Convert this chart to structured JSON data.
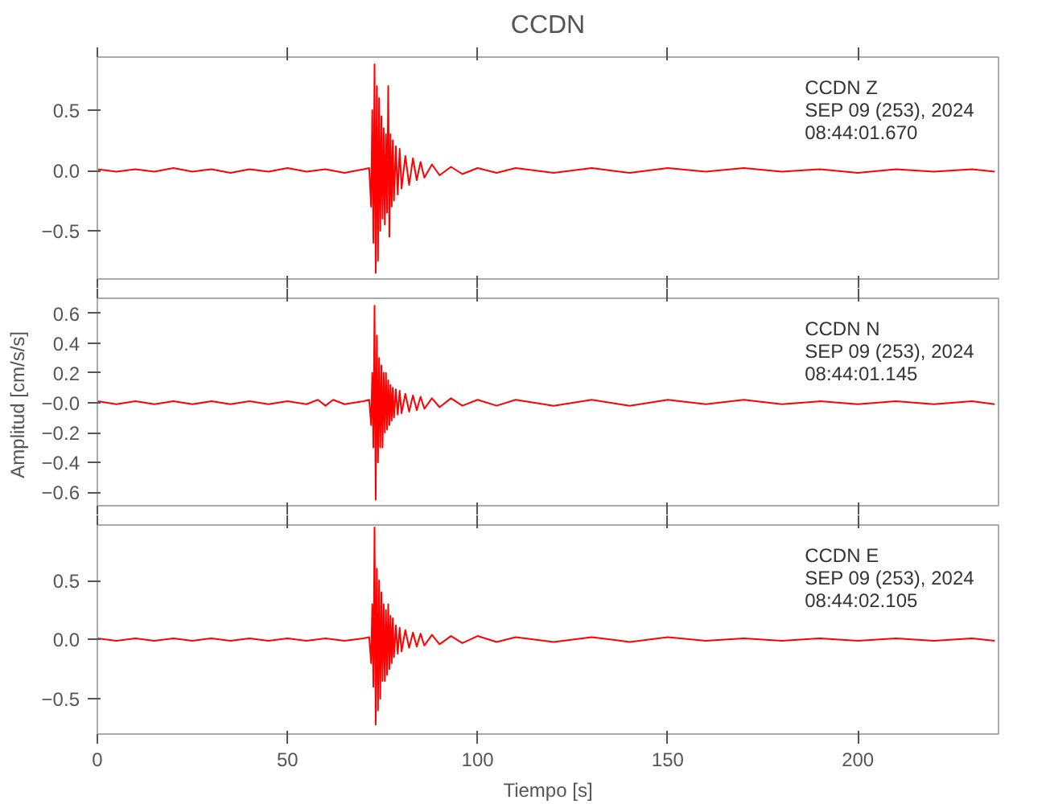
{
  "chart_data": [
    {
      "type": "line",
      "title": "CCDN",
      "annotations": [
        "CCDN   Z",
        "SEP 09 (253), 2024",
        "08:44:01.670"
      ],
      "x": [
        0,
        5,
        10,
        15,
        20,
        25,
        30,
        35,
        40,
        45,
        50,
        55,
        60,
        65,
        70,
        71.5,
        72,
        72.3,
        72.6,
        72.9,
        73.2,
        73.5,
        73.8,
        74.1,
        74.4,
        74.7,
        75,
        75.3,
        75.6,
        75.9,
        76.2,
        76.5,
        76.8,
        77.1,
        77.4,
        77.7,
        78,
        78.5,
        79,
        79.5,
        80,
        81,
        82,
        83,
        84,
        85,
        86,
        88,
        90,
        93,
        96,
        100,
        105,
        110,
        120,
        130,
        140,
        150,
        160,
        170,
        180,
        190,
        200,
        210,
        220,
        230,
        236
      ],
      "series": [
        {
          "color": "#ff0000",
          "values": [
            0.01,
            -0.01,
            0.01,
            -0.01,
            0.02,
            -0.01,
            0.01,
            -0.02,
            0.01,
            -0.01,
            0.02,
            -0.01,
            0.01,
            -0.02,
            0.01,
            0.02,
            -0.3,
            0.5,
            -0.6,
            0.88,
            -0.85,
            0.7,
            -0.75,
            0.6,
            -0.5,
            0.45,
            -0.4,
            0.35,
            -0.45,
            0.3,
            -0.35,
            0.7,
            -0.55,
            0.3,
            -0.3,
            0.25,
            -0.25,
            0.2,
            -0.2,
            0.18,
            -0.15,
            0.12,
            -0.12,
            0.1,
            -0.08,
            0.07,
            -0.06,
            0.05,
            -0.04,
            0.03,
            -0.03,
            0.02,
            -0.02,
            0.02,
            -0.02,
            0.02,
            -0.02,
            0.02,
            -0.01,
            0.02,
            -0.01,
            0.01,
            -0.02,
            0.01,
            -0.01,
            0.01,
            -0.01
          ]
        }
      ],
      "xlim": [
        0,
        237
      ],
      "ylim": [
        -0.9,
        0.94
      ],
      "xticks": [
        0,
        50,
        100,
        150,
        200
      ],
      "yticks": [
        {
          "value": -0.5,
          "label": "−0.5"
        },
        {
          "value": 0,
          "label": "0.0"
        },
        {
          "value": 0.5,
          "label": "0.5"
        }
      ],
      "tick_labels": "y",
      "grid": false
    },
    {
      "type": "line",
      "ylabel": "Amplitud  [cm/s/s]",
      "annotations": [
        "CCDN   N",
        "SEP 09 (253), 2024",
        "08:44:01.145"
      ],
      "x": [
        0,
        5,
        10,
        15,
        20,
        25,
        30,
        35,
        40,
        45,
        50,
        55,
        58,
        60,
        62,
        65,
        70,
        71.5,
        72,
        72.3,
        72.6,
        72.9,
        73.2,
        73.5,
        73.8,
        74.1,
        74.4,
        74.7,
        75,
        75.3,
        75.6,
        75.9,
        76.2,
        76.5,
        76.8,
        77.1,
        77.4,
        77.7,
        78,
        78.5,
        79,
        79.5,
        80,
        81,
        82,
        83,
        84,
        85,
        86,
        88,
        90,
        93,
        96,
        100,
        105,
        110,
        120,
        130,
        140,
        150,
        160,
        170,
        180,
        190,
        200,
        210,
        220,
        230,
        236
      ],
      "series": [
        {
          "color": "#ff0000",
          "values": [
            0.01,
            -0.01,
            0.01,
            -0.01,
            0.01,
            -0.01,
            0.01,
            -0.01,
            0.01,
            -0.01,
            0.01,
            -0.01,
            0.02,
            -0.02,
            0.02,
            -0.01,
            0.01,
            0.02,
            -0.15,
            0.2,
            -0.3,
            0.65,
            -0.65,
            0.45,
            -0.4,
            0.3,
            -0.3,
            0.25,
            -0.3,
            0.2,
            -0.2,
            0.2,
            -0.18,
            0.15,
            -0.15,
            0.12,
            -0.12,
            0.1,
            -0.1,
            0.09,
            -0.08,
            0.08,
            -0.07,
            0.06,
            -0.06,
            0.05,
            -0.05,
            0.04,
            -0.04,
            0.03,
            -0.03,
            0.03,
            -0.02,
            0.02,
            -0.02,
            0.02,
            -0.02,
            0.02,
            -0.02,
            0.02,
            -0.01,
            0.02,
            -0.01,
            0.01,
            -0.01,
            0.01,
            -0.01,
            0.01,
            -0.01
          ]
        }
      ],
      "xlim": [
        0,
        237
      ],
      "ylim": [
        -0.69,
        0.7
      ],
      "xticks": [
        0,
        50,
        100,
        150,
        200
      ],
      "yticks": [
        {
          "value": -0.6,
          "label": "−0.6"
        },
        {
          "value": -0.4,
          "label": "−0.4"
        },
        {
          "value": -0.2,
          "label": "−0.2"
        },
        {
          "value": 0,
          "label": "−0.0"
        },
        {
          "value": 0.2,
          "label": "0.2"
        },
        {
          "value": 0.4,
          "label": "0.4"
        },
        {
          "value": 0.6,
          "label": "0.6"
        }
      ],
      "tick_labels": "y",
      "grid": false
    },
    {
      "type": "line",
      "xlabel": "Tiempo [s]",
      "annotations": [
        "CCDN   E",
        "SEP 09 (253), 2024",
        "08:44:02.105"
      ],
      "x": [
        0,
        5,
        10,
        15,
        20,
        25,
        30,
        35,
        40,
        45,
        50,
        55,
        60,
        65,
        70,
        71.5,
        72,
        72.3,
        72.6,
        72.9,
        73.2,
        73.5,
        73.8,
        74.1,
        74.4,
        74.7,
        75,
        75.3,
        75.6,
        75.9,
        76.2,
        76.5,
        76.8,
        77.1,
        77.4,
        77.7,
        78,
        78.5,
        79,
        79.5,
        80,
        81,
        82,
        83,
        84,
        85,
        86,
        88,
        90,
        93,
        96,
        100,
        105,
        110,
        120,
        130,
        140,
        150,
        160,
        170,
        180,
        190,
        200,
        210,
        220,
        230,
        236
      ],
      "series": [
        {
          "color": "#ff0000",
          "values": [
            0.01,
            -0.01,
            0.01,
            -0.01,
            0.01,
            -0.01,
            0.01,
            -0.01,
            0.01,
            -0.01,
            0.01,
            -0.01,
            0.01,
            -0.01,
            0.01,
            0.02,
            -0.2,
            0.3,
            -0.4,
            0.95,
            -0.72,
            0.6,
            -0.6,
            0.5,
            -0.5,
            0.4,
            -0.35,
            0.3,
            -0.35,
            0.25,
            -0.3,
            0.3,
            -0.25,
            0.2,
            -0.2,
            0.18,
            -0.15,
            0.12,
            -0.12,
            0.1,
            -0.1,
            0.08,
            -0.07,
            0.06,
            -0.06,
            0.05,
            -0.05,
            0.04,
            -0.04,
            0.03,
            -0.03,
            0.03,
            -0.02,
            0.02,
            -0.02,
            0.02,
            -0.02,
            0.02,
            -0.01,
            0.01,
            -0.01,
            0.01,
            -0.01,
            0.01,
            -0.01,
            0.01,
            -0.01
          ]
        }
      ],
      "xlim": [
        0,
        237
      ],
      "ylim": [
        -0.8,
        0.97
      ],
      "xticks": [
        0,
        50,
        100,
        150,
        200
      ],
      "yticks": [
        {
          "value": -0.5,
          "label": "−0.5"
        },
        {
          "value": 0,
          "label": "0.0"
        },
        {
          "value": 0.5,
          "label": "0.5"
        }
      ],
      "grid": false
    }
  ]
}
